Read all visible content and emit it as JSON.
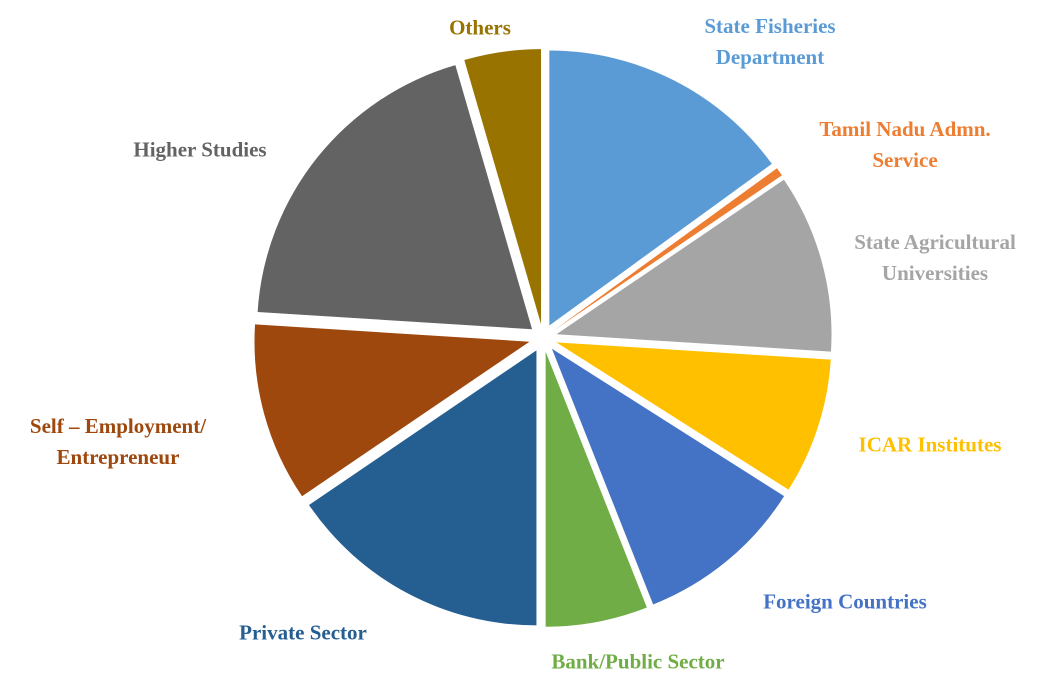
{
  "chart_data": {
    "type": "pie",
    "categories": [
      "State Fisheries Department",
      "Tamil Nadu Admn. Service",
      "State Agricultural Universities",
      "ICAR Institutes",
      "Foreign Countries",
      "Bank/Public Sector",
      "Private Sector",
      "Self – Employment/ Entrepreneur",
      "Higher Studies",
      "Others"
    ],
    "values": [
      15,
      0.5,
      10.5,
      8,
      10,
      6,
      15.5,
      10.5,
      19.5,
      4.5
    ],
    "colors": [
      "#5b9bd5",
      "#ed7d31",
      "#a5a5a5",
      "#ffc000",
      "#4472c4",
      "#70ad47",
      "#255e91",
      "#9e480e",
      "#636363",
      "#997300"
    ]
  }
}
